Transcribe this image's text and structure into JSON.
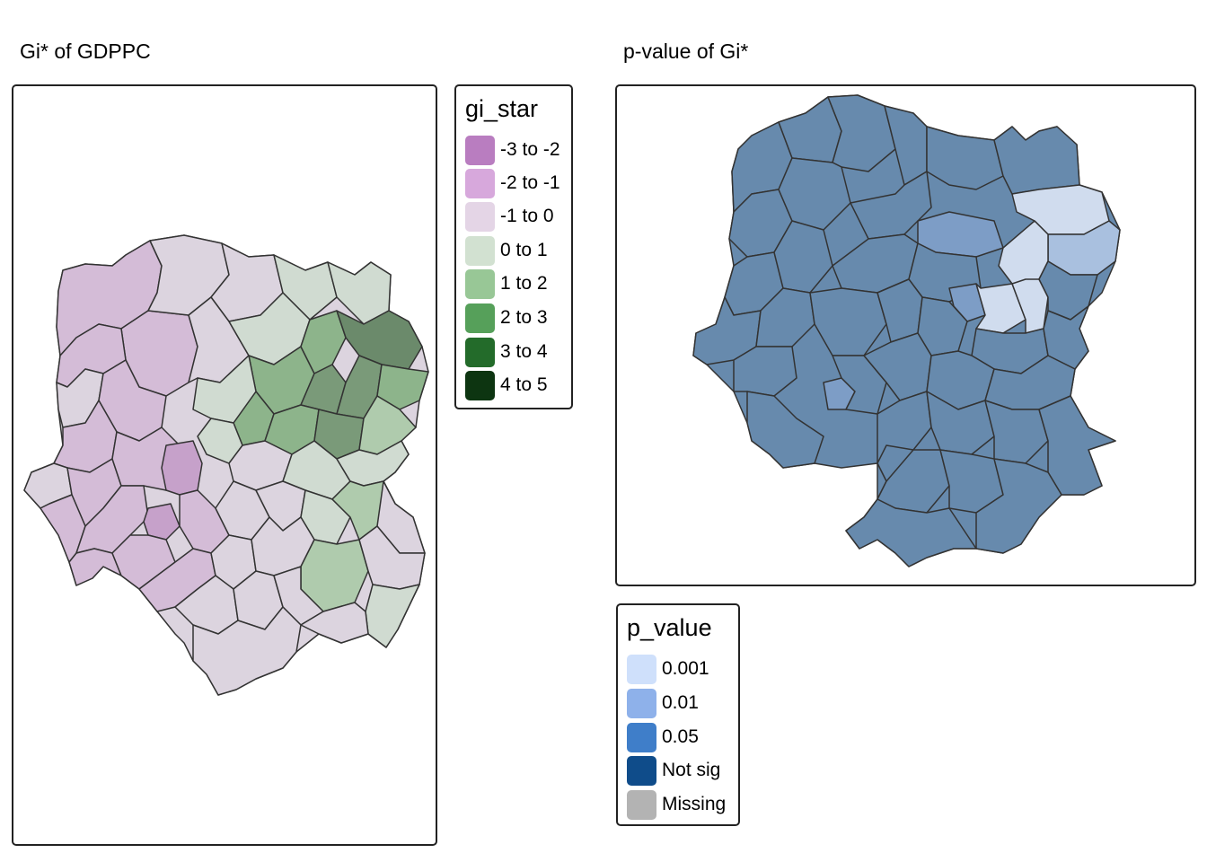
{
  "left_panel": {
    "title": "Gi* of GDPPC",
    "legend": {
      "title": "gi_star",
      "items": [
        {
          "label": "-3 to -2",
          "color": "#b97dc0"
        },
        {
          "label": "-2 to -1",
          "color": "#d7a8dc"
        },
        {
          "label": "-1 to 0",
          "color": "#e4d5e6"
        },
        {
          "label": "0 to 1",
          "color": "#d2e1d1"
        },
        {
          "label": "1 to 2",
          "color": "#98c796"
        },
        {
          "label": "2 to 3",
          "color": "#56a05a"
        },
        {
          "label": "3 to 4",
          "color": "#236b2a"
        },
        {
          "label": "4 to 5",
          "color": "#0d3511"
        }
      ]
    }
  },
  "right_panel": {
    "title": "p-value of Gi*",
    "legend": {
      "title": "p_value",
      "items": [
        {
          "label": "0.001",
          "color": "#cfe0fb"
        },
        {
          "label": "0.01",
          "color": "#8eb1ea"
        },
        {
          "label": "0.05",
          "color": "#3f7ec9"
        },
        {
          "label": "Not sig",
          "color": "#0f4c8a"
        },
        {
          "label": "Missing",
          "color": "#b3b3b3"
        }
      ]
    }
  },
  "map_fill_colors": {
    "gi_neg2": "#c6a1ca",
    "gi_neg1": "#d4bcd7",
    "gi_neg0": "#dcd4df",
    "gi_pos0": "#d0dbd1",
    "gi_pos1": "#afcbad",
    "gi_pos2": "#8db48b",
    "gi_pos3": "#7a9a79",
    "gi_pos4": "#6b8a6b",
    "p_notsig": "#678aad",
    "p_005": "#7d9dc6",
    "p_001": "#a9c0df",
    "p_0001": "#d0dcee"
  }
}
